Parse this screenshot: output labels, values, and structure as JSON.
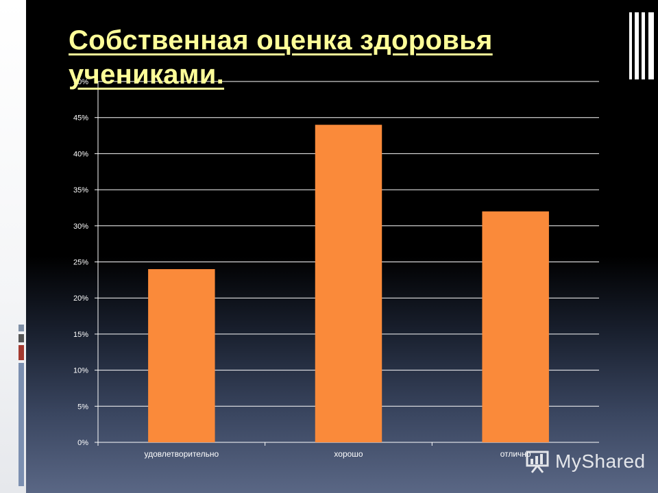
{
  "slide": {
    "title": "Собственная оценка здоровья учениками."
  },
  "colors": {
    "background": "#000000",
    "title": "#ffff99",
    "bar": "#fa8a3a",
    "axis_text": "#ffffff",
    "gridline": "#ffffff"
  },
  "chart_data": {
    "type": "bar",
    "title": "",
    "xlabel": "",
    "ylabel": "",
    "categories": [
      "удовлетворительно",
      "хорошо",
      "отлично"
    ],
    "values": [
      24,
      44,
      32
    ],
    "y_tick_labels": [
      "0%",
      "5%",
      "10%",
      "15%",
      "20%",
      "25%",
      "30%",
      "35%",
      "40%",
      "45%",
      "50%"
    ],
    "ylim": [
      0,
      50
    ],
    "y_unit": "%",
    "grid": true,
    "legend": "none"
  },
  "watermark": {
    "text": "MyShared",
    "icon": "presentation-board-icon"
  }
}
